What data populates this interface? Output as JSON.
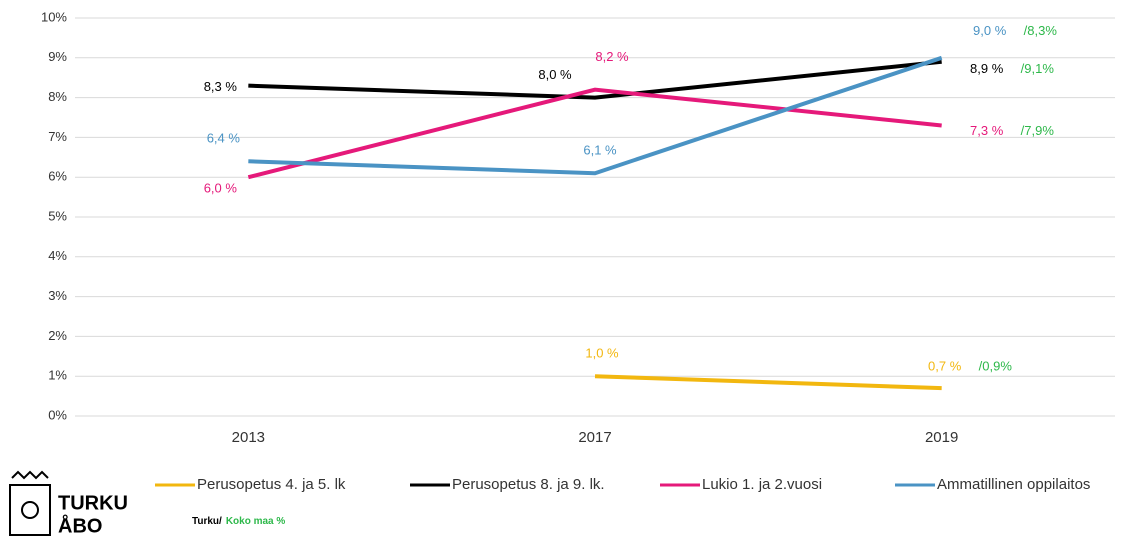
{
  "chart_data": {
    "type": "line",
    "categories": [
      "2013",
      "2017",
      "2019"
    ],
    "ylim": [
      0,
      10
    ],
    "yticks": [
      {
        "value": 0,
        "label": "0%"
      },
      {
        "value": 1,
        "label": "1%"
      },
      {
        "value": 2,
        "label": "2%"
      },
      {
        "value": 3,
        "label": "3%"
      },
      {
        "value": 4,
        "label": "4%"
      },
      {
        "value": 5,
        "label": "5%"
      },
      {
        "value": 6,
        "label": "6%"
      },
      {
        "value": 7,
        "label": "7%"
      },
      {
        "value": 8,
        "label": "8%"
      },
      {
        "value": 9,
        "label": "9%"
      },
      {
        "value": 10,
        "label": "10%"
      }
    ],
    "grid": true,
    "legend": "bottom",
    "series": [
      {
        "name": "Perusopetus 4. ja 5. lk",
        "color": "#f2b70f",
        "values": [
          null,
          1.0,
          0.7
        ],
        "value_labels": [
          null,
          "1,0 %",
          "0,7 %"
        ],
        "national_value_labels": [
          null,
          null,
          "/0,9%"
        ]
      },
      {
        "name": "Perusopetus 8. ja 9. lk.",
        "color": "#000000",
        "values": [
          8.3,
          8.0,
          8.9
        ],
        "value_labels": [
          "8,3 %",
          "8,0 %",
          "8,9 %"
        ],
        "national_value_labels": [
          null,
          null,
          "/9,1%"
        ]
      },
      {
        "name": "Lukio 1. ja 2.vuosi",
        "color": "#e5197a",
        "values": [
          6.0,
          8.2,
          7.3
        ],
        "value_labels": [
          "6,0 %",
          "8,2 %",
          "7,3 %"
        ],
        "national_value_labels": [
          null,
          null,
          "/7,9%"
        ]
      },
      {
        "name": "Ammatillinen oppilaitos",
        "color": "#4a93c4",
        "values": [
          6.4,
          6.1,
          9.0
        ],
        "value_labels": [
          "6,4 %",
          "6,1 %",
          "9,0 %"
        ],
        "national_value_labels": [
          null,
          null,
          "/8,3%"
        ]
      }
    ],
    "national_color": "#2db84a",
    "footnote": {
      "local": "Turku/",
      "national": "Koko maa %"
    },
    "logo": {
      "line1": "TURKU",
      "line2": "ÅBO"
    }
  }
}
